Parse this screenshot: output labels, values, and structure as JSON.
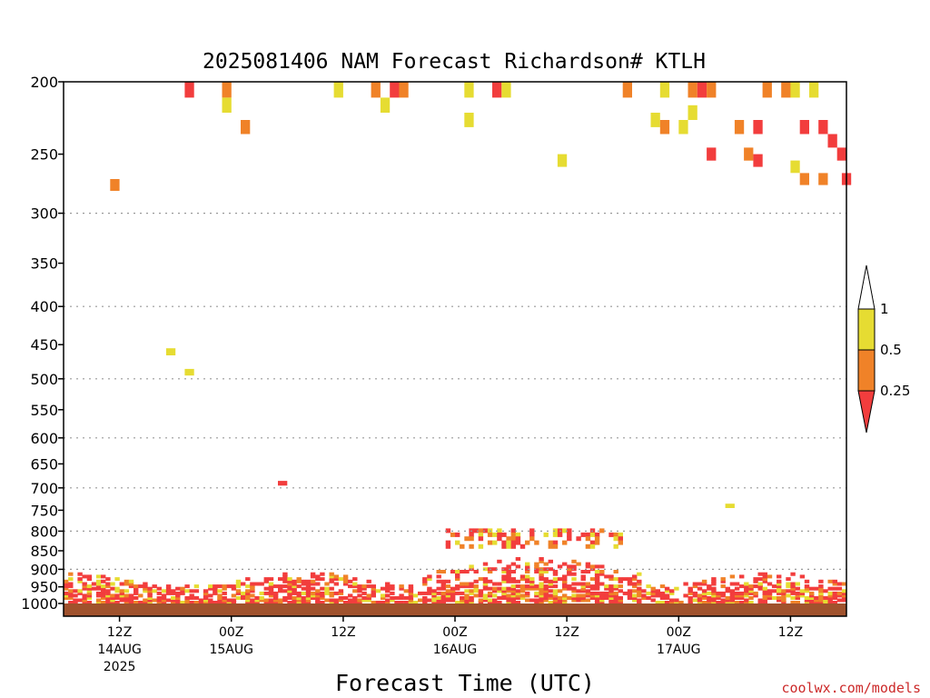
{
  "chart_data": {
    "type": "heatmap",
    "title": "2025081406 NAM Forecast Richardson# KTLH",
    "xlabel": "Forecast Time (UTC)",
    "ylabel": "",
    "y_scale": "log-pressure",
    "yticks": [
      200,
      250,
      300,
      350,
      400,
      450,
      500,
      550,
      600,
      650,
      700,
      750,
      800,
      850,
      900,
      950,
      1000
    ],
    "ylim": [
      1040,
      200
    ],
    "xlim": [
      6,
      90
    ],
    "x_hours_ticks": [
      12,
      24,
      36,
      48,
      60,
      72,
      84
    ],
    "x_tick_labels": [
      [
        "12Z",
        "14AUG",
        "2025"
      ],
      [
        "00Z",
        "15AUG"
      ],
      [
        "12Z"
      ],
      [
        "00Z",
        "16AUG"
      ],
      [
        "12Z"
      ],
      [
        "00Z",
        "17AUG"
      ],
      [
        "12Z"
      ]
    ],
    "gridlines_at": [
      300,
      400,
      500,
      600,
      700,
      800,
      900
    ],
    "legend": {
      "placement": "right",
      "bins": [
        {
          "label": "0.25",
          "color": "#f23d3d"
        },
        {
          "label": "0.5",
          "color": "#f08228"
        },
        {
          "label": "1",
          "color": "#e6dc32"
        }
      ],
      "above_color": "#ffffff"
    },
    "surface_color": "#a0522d",
    "cells": [
      [
        19.5,
        205,
        "r"
      ],
      [
        23.5,
        205,
        "o"
      ],
      [
        23.5,
        215,
        "y"
      ],
      [
        25.5,
        230,
        "o"
      ],
      [
        35.5,
        205,
        "y"
      ],
      [
        39.5,
        205,
        "o"
      ],
      [
        41.5,
        205,
        "r"
      ],
      [
        42.5,
        205,
        "o"
      ],
      [
        40.5,
        215,
        "y"
      ],
      [
        49.5,
        205,
        "y"
      ],
      [
        49.5,
        225,
        "y"
      ],
      [
        52.5,
        205,
        "r"
      ],
      [
        53.5,
        205,
        "y"
      ],
      [
        59.5,
        255,
        "y"
      ],
      [
        66.5,
        205,
        "o"
      ],
      [
        70.5,
        205,
        "y"
      ],
      [
        69.5,
        225,
        "y"
      ],
      [
        70.5,
        230,
        "o"
      ],
      [
        73.5,
        205,
        "o"
      ],
      [
        74.5,
        205,
        "r"
      ],
      [
        75.5,
        205,
        "o"
      ],
      [
        73.5,
        220,
        "y"
      ],
      [
        72.5,
        230,
        "y"
      ],
      [
        78.5,
        230,
        "o"
      ],
      [
        80.5,
        230,
        "r"
      ],
      [
        79.5,
        250,
        "o"
      ],
      [
        80.5,
        255,
        "r"
      ],
      [
        81.5,
        205,
        "o"
      ],
      [
        83.5,
        205,
        "o"
      ],
      [
        84.5,
        205,
        "y"
      ],
      [
        86.5,
        205,
        "y"
      ],
      [
        85.5,
        230,
        "r"
      ],
      [
        87.5,
        230,
        "r"
      ],
      [
        88.5,
        240,
        "r"
      ],
      [
        84.5,
        260,
        "y"
      ],
      [
        85.5,
        270,
        "o"
      ],
      [
        87.5,
        270,
        "o"
      ],
      [
        89.5,
        250,
        "r"
      ],
      [
        90.0,
        270,
        "r"
      ],
      [
        75.5,
        250,
        "r"
      ],
      [
        11.5,
        275,
        "o"
      ],
      [
        17.5,
        460,
        "y"
      ],
      [
        19.5,
        490,
        "y"
      ],
      [
        29.5,
        690,
        "r"
      ],
      [
        77.5,
        740,
        "y"
      ]
    ],
    "low_level_pattern": "dense red/orange/yellow mixing layer below 850 hPa; elevated band near 800-850 hPa between 48Z and 64Z"
  },
  "credit": "coolwx.com/models"
}
